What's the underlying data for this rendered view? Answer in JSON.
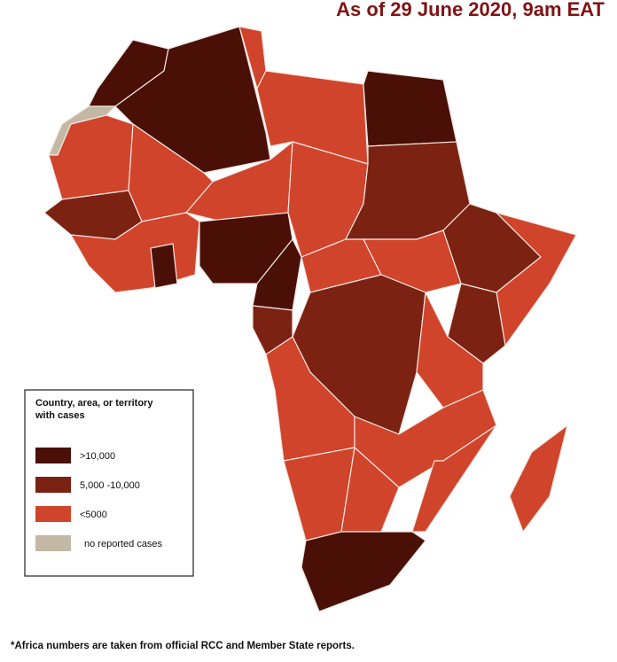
{
  "header": {
    "title": "As of 29 June 2020, 9am EAT"
  },
  "legend": {
    "title_lines": [
      "Country, area, or territory",
      "with cases"
    ],
    "items": [
      {
        "label": ">10,000",
        "color": "#4a0f06"
      },
      {
        "label": "5,000 -10,000",
        "color": "#7b2212"
      },
      {
        "label": "<5000",
        "color": "#d0442c"
      },
      {
        "label": "no reported cases",
        "color": "#c2b8a3"
      }
    ]
  },
  "footnote": "*Africa numbers are taken from official RCC and Member State reports."
}
